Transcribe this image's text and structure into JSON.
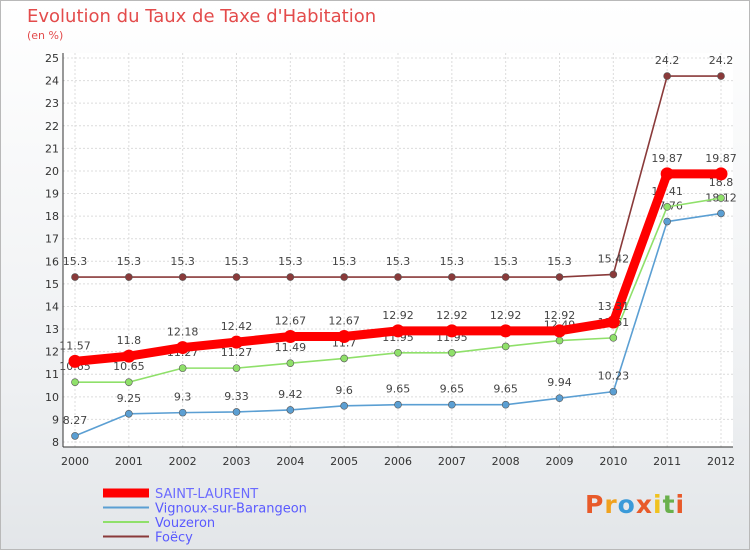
{
  "chart_data": {
    "type": "line",
    "title": "Evolution du Taux de Taxe d'Habitation",
    "subtitle": "(en %)",
    "xlabel": "",
    "ylabel": "",
    "x": [
      "2000",
      "2001",
      "2002",
      "2003",
      "2004",
      "2005",
      "2006",
      "2007",
      "2008",
      "2009",
      "2010",
      "2011",
      "2012"
    ],
    "ylim": [
      8,
      25
    ],
    "yticks": [
      "8",
      "9",
      "10",
      "11",
      "12",
      "13",
      "14",
      "15",
      "16",
      "17",
      "18",
      "19",
      "20",
      "21",
      "22",
      "23",
      "24",
      "25"
    ],
    "grid": true,
    "legend_position": "bottom-left",
    "series": [
      {
        "name": "SAINT-LAURENT",
        "color": "#ff0000",
        "values": [
          11.57,
          11.8,
          12.18,
          12.42,
          12.67,
          12.67,
          12.92,
          12.92,
          12.92,
          12.92,
          13.31,
          19.87,
          19.87
        ],
        "labels": [
          "11.57",
          "11.8",
          "12.18",
          "12.42",
          "12.67",
          "12.67",
          "12.92",
          "12.92",
          "12.92",
          "12.92",
          "13.31",
          "19.87",
          "19.87"
        ]
      },
      {
        "name": "Vignoux-sur-Barangeon",
        "color": "#5b9fd3",
        "values": [
          8.27,
          9.25,
          9.3,
          9.33,
          9.42,
          9.6,
          9.65,
          9.65,
          9.65,
          9.94,
          10.23,
          17.76,
          18.12
        ],
        "labels": [
          "8.27",
          "9.25",
          "9.3",
          "9.33",
          "9.42",
          "9.6",
          "9.65",
          "9.65",
          "9.65",
          "9.94",
          "10.23",
          "17.76",
          "18.12"
        ]
      },
      {
        "name": "Vouzeron",
        "color": "#8fe06a",
        "values": [
          10.65,
          10.65,
          11.27,
          11.27,
          11.49,
          11.7,
          11.95,
          11.95,
          12.23,
          12.49,
          12.61,
          18.41,
          18.8
        ],
        "labels": [
          "10.65",
          "10.65",
          "11.27",
          "11.27",
          "11.49",
          "11.7",
          "11.95",
          "11.95",
          "12.23",
          "12.49",
          "12.61",
          "18.41",
          "18.8"
        ]
      },
      {
        "name": "Foëcy",
        "color": "#8a3a3a",
        "values": [
          15.3,
          15.3,
          15.3,
          15.3,
          15.3,
          15.3,
          15.3,
          15.3,
          15.3,
          15.3,
          15.42,
          24.2,
          24.2
        ],
        "labels": [
          "15.3",
          "15.3",
          "15.3",
          "15.3",
          "15.3",
          "15.3",
          "15.3",
          "15.3",
          "15.3",
          "15.3",
          "15.42",
          "24.2",
          "24.2"
        ]
      }
    ]
  },
  "logo": {
    "text": "Proxiti",
    "letters": [
      "P",
      "r",
      "o",
      "x",
      "i",
      "t",
      "i"
    ]
  }
}
